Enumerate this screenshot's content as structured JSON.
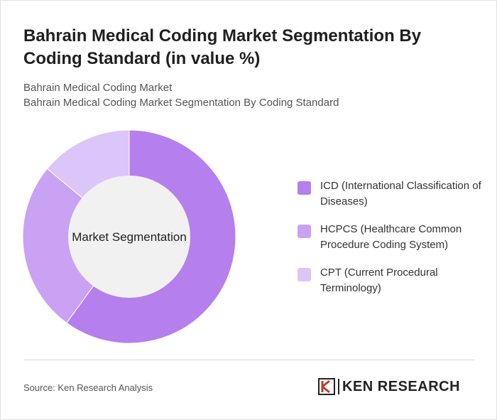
{
  "title": "Bahrain Medical Coding Market Segmentation By Coding Standard (in value %)",
  "subtitle_1": "Bahrain Medical Coding Market",
  "subtitle_2": "Bahrain Medical Coding Market Segmentation By Coding Standard",
  "source": "Source: Ken Research Analysis",
  "logo_text": "KEN RESEARCH",
  "chart_data": {
    "type": "pie",
    "variant": "donut",
    "center_label": "Market Segmentation",
    "categories": [
      "ICD (International Classification of Diseases)",
      "HCPCS (Healthcare Common Procedure Coding System)",
      "CPT (Current Procedural Terminology)"
    ],
    "values": [
      60,
      26,
      14
    ],
    "colors": [
      "#b57fee",
      "#caa2f3",
      "#dcc5f8"
    ],
    "legend_position": "right"
  }
}
